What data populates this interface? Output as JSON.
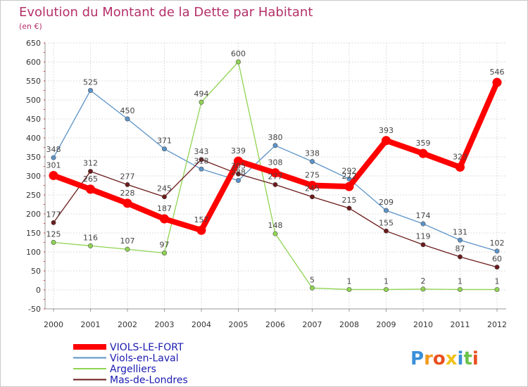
{
  "chart_data": {
    "type": "line",
    "title": "Evolution du Montant de la Dette par Habitant",
    "subtitle": "(en €)",
    "x": [
      "2000",
      "2001",
      "2002",
      "2003",
      "2004",
      "2005",
      "2006",
      "2007",
      "2008",
      "2009",
      "2010",
      "2011",
      "2012"
    ],
    "ylim": [
      -50,
      650
    ],
    "yticks": [
      -50,
      0,
      50,
      100,
      150,
      200,
      250,
      300,
      350,
      400,
      450,
      500,
      550,
      600,
      650
    ],
    "grid": true,
    "legend_position": "bottom-left",
    "series": [
      {
        "name": "Viols-en-Laval",
        "color": "#5b93c8",
        "values": [
          348,
          525,
          450,
          371,
          318,
          288,
          380,
          338,
          292,
          209,
          174,
          131,
          102
        ]
      },
      {
        "name": "Argelliers",
        "color": "#8fd451",
        "values": [
          125,
          116,
          107,
          97,
          494,
          600,
          148,
          5,
          1,
          1,
          2,
          1,
          1
        ]
      },
      {
        "name": "Mas-de-Londres",
        "color": "#6b1a1a",
        "values": [
          177,
          312,
          277,
          245,
          343,
          305,
          277,
          245,
          215,
          155,
          119,
          87,
          60
        ]
      },
      {
        "name": "VIOLS-LE-FORT",
        "color": "#ff0000",
        "values": [
          301,
          265,
          228,
          187,
          157,
          339,
          308,
          275,
          272,
          393,
          359,
          323,
          546
        ]
      }
    ],
    "legend": [
      "VIOLS-LE-FORT",
      "Viols-en-Laval",
      "Argelliers",
      "Mas-de-Londres"
    ],
    "brand": "Proxiti"
  }
}
